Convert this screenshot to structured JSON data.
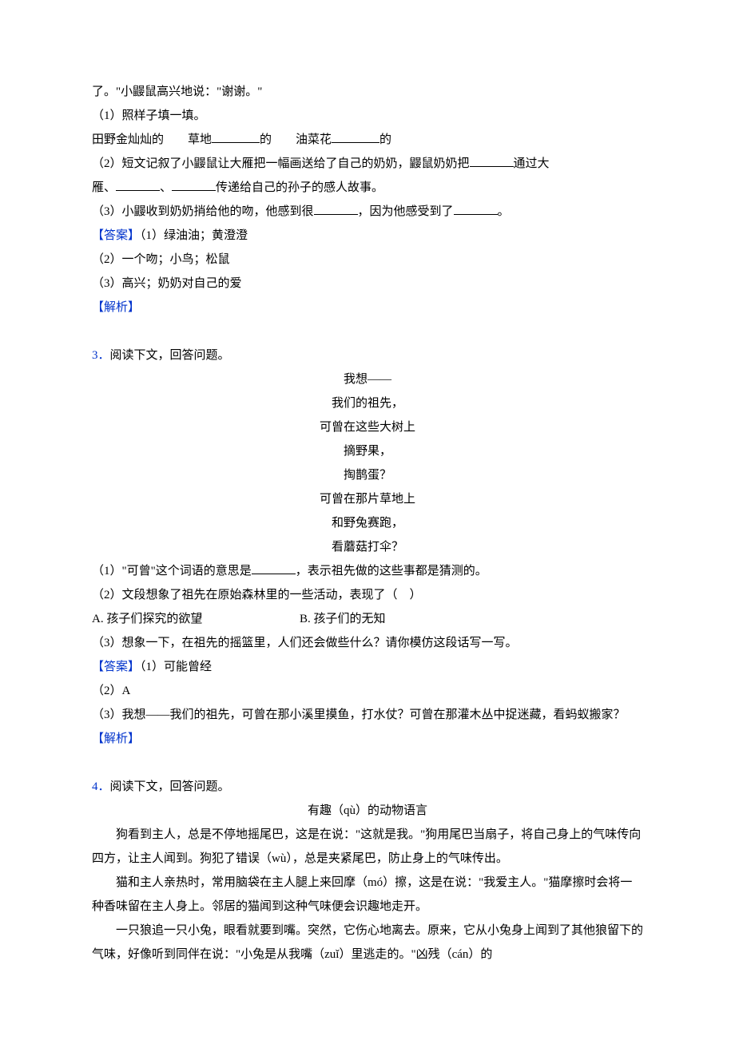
{
  "q2": {
    "cont_lines": [
      "了。\"小鼹鼠高兴地说：\"谢谢。\"",
      "（1）照样子填一填。"
    ],
    "fill_seg1": "田野金灿灿的　　草地",
    "fill_seg2": "的　　油菜花",
    "fill_seg3": "的",
    "sub2_seg1": "（2）短文记叙了小鼹鼠让大雁把一幅画送给了自己的奶奶，鼹鼠奶奶把",
    "sub2_seg2": "通过大",
    "sub2_line2_seg1": "雁、",
    "sub2_line2_seg2": "、",
    "sub2_line2_seg3": "传递给自己的孙子的感人故事。",
    "sub3_seg1": "（3）小鼹收到奶奶捎给他的吻，他感到很",
    "sub3_seg2": "，因为他感受到了",
    "sub3_seg3": "。",
    "answer_label": "【答案】",
    "ans1": "（1）绿油油；黄澄澄",
    "ans2": "（2）一个吻；小鸟；松鼠",
    "ans3": "（3）高兴；奶奶对自己的爱",
    "analysis_label": "【解析】"
  },
  "q3": {
    "num": "3．",
    "stem": "阅读下文，回答问题。",
    "poem": [
      "我想——",
      "我们的祖先，",
      "可曾在这些大树上",
      "摘野果，",
      "掏鹊蛋？",
      "可曾在那片草地上",
      "和野兔赛跑，",
      "看蘑菇打伞？"
    ],
    "sub1_seg1": "（1）\"可曾\"这个词语的意思是",
    "sub1_seg2": "，表示祖先做的这些事都是猜测的。",
    "sub2": "（2）文段想象了祖先在原始森林里的一些活动，表现了（　）",
    "choice_a": "A. 孩子们探究的欲望",
    "choice_b": "B. 孩子们的无知",
    "sub3": "（3）想象一下，在祖先的摇篮里，人们还会做些什么？请你模仿这段话写一写。",
    "answer_label": "【答案】",
    "ans1": "（1）可能曾经",
    "ans2": "（2）A",
    "ans3": "（3）我想——我们的祖先，可曾在那小溪里摸鱼，打水仗？可曾在那灌木丛中捉迷藏，看蚂蚁搬家？",
    "analysis_label": "【解析】"
  },
  "q4": {
    "num": "4．",
    "stem": "阅读下文，回答问题。",
    "title": "有趣（qù）的动物语言",
    "paras": [
      "狗看到主人，总是不停地摇尾巴，这是在说：\"这就是我。\"狗用尾巴当扇子，将自己身上的气味传向四方，让主人闻到。狗犯了错误（wù），总是夹紧尾巴，防止身上的气味传出。",
      "猫和主人亲热时，常用脑袋在主人腿上来回摩（mó）擦，这是在说：\"我爱主人。\"猫摩擦时会将一种香味留在主人身上。邻居的猫闻到这种气味便会识趣地走开。",
      "一只狼追一只小兔，眼看就要到嘴。突然，它伤心地离去。原来，它从小兔身上闻到了其他狼留下的气味，好像听到同伴在说：\"小兔是从我嘴（zuǐ）里逃走的。\"凶残（cán）的"
    ]
  }
}
